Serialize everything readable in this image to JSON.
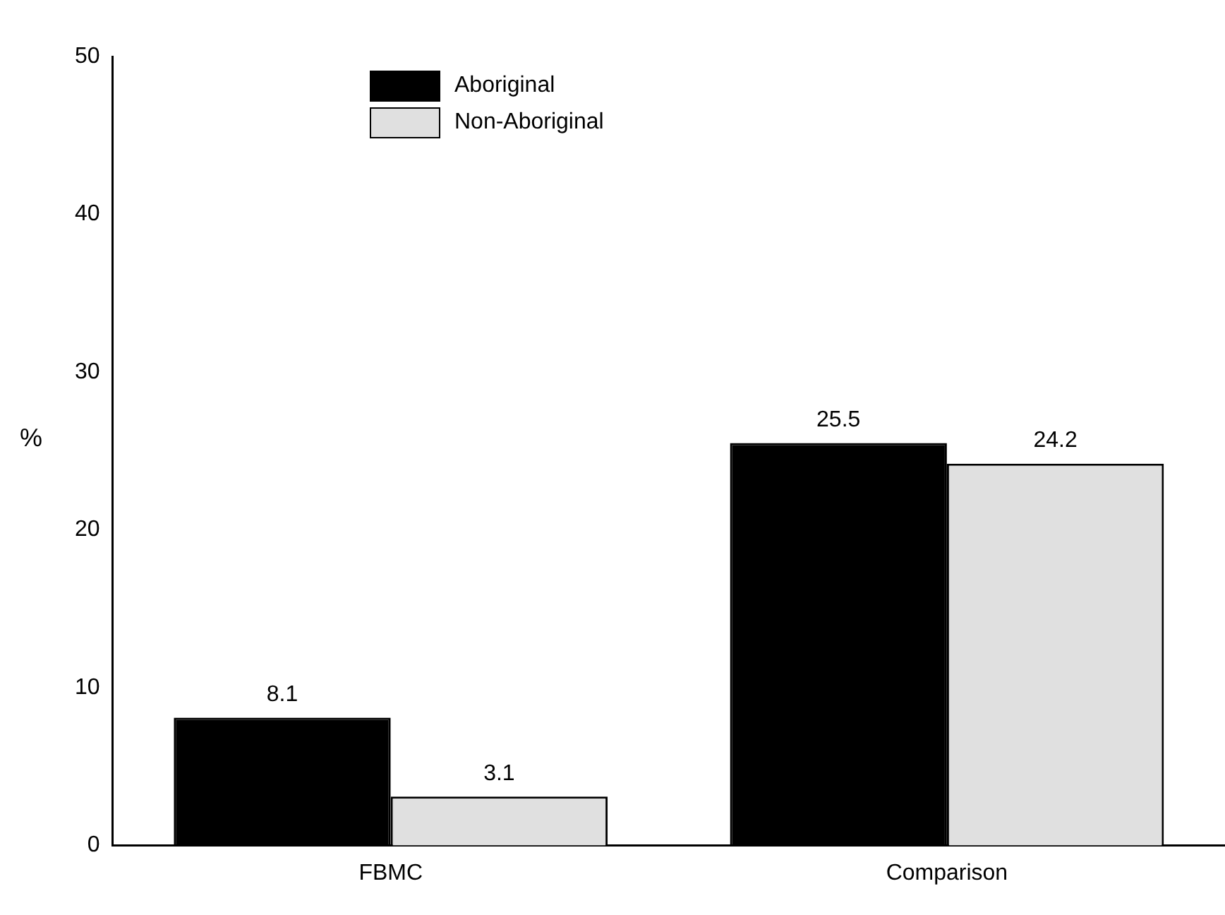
{
  "chart_data": {
    "type": "bar",
    "ylabel": "%",
    "categories": [
      "FBMC",
      "Comparison"
    ],
    "series": [
      {
        "name": "Aboriginal",
        "color": "#000000",
        "values": [
          8.1,
          25.5
        ]
      },
      {
        "name": "Non-Aboriginal",
        "color": "#e0e0e0",
        "values": [
          3.1,
          24.2
        ]
      }
    ],
    "ylim": [
      0,
      50
    ],
    "yticks": [
      0,
      10,
      20,
      30,
      40,
      50
    ],
    "grid": false,
    "legend": "top left",
    "data_labels": true
  }
}
